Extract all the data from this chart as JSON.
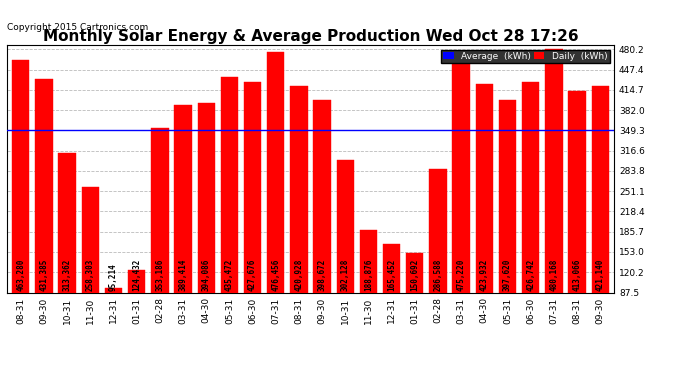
{
  "title": "Monthly Solar Energy & Average Production Wed Oct 28 17:26",
  "copyright": "Copyright 2015 Cartronics.com",
  "categories": [
    "08-31",
    "09-30",
    "10-31",
    "11-30",
    "12-31",
    "01-31",
    "02-28",
    "03-31",
    "04-30",
    "05-31",
    "06-30",
    "07-31",
    "08-31",
    "09-30",
    "10-31",
    "11-30",
    "12-31",
    "01-31",
    "02-28",
    "03-31",
    "04-30",
    "05-31",
    "06-30",
    "07-31",
    "08-31",
    "09-30"
  ],
  "values": [
    463.28,
    431.385,
    313.362,
    258.303,
    95.214,
    124.432,
    353.186,
    389.414,
    394.086,
    435.472,
    427.676,
    476.456,
    420.928,
    398.672,
    302.128,
    188.876,
    165.452,
    150.692,
    286.588,
    475.22,
    423.932,
    397.62,
    426.742,
    480.168,
    413.066,
    421.14
  ],
  "average_value": 349.327,
  "bar_color": "#FF0000",
  "average_line_color": "#0000FF",
  "average_label_color": "#FF0000",
  "legend_avg_bg": "#0000FF",
  "legend_daily_bg": "#FF0000",
  "ylim_min": 87.5,
  "ylim_max": 487.0,
  "yticks": [
    87.5,
    120.2,
    153.0,
    185.7,
    218.4,
    251.1,
    283.8,
    316.6,
    349.3,
    382.0,
    414.7,
    447.4,
    480.2
  ],
  "grid_color": "#BBBBBB",
  "bg_color": "#FFFFFF",
  "fig_bg_color": "#FFFFFF",
  "title_fontsize": 11,
  "tick_fontsize": 6.5,
  "bar_label_fontsize": 5.5,
  "avg_label_fontsize": 6.0
}
